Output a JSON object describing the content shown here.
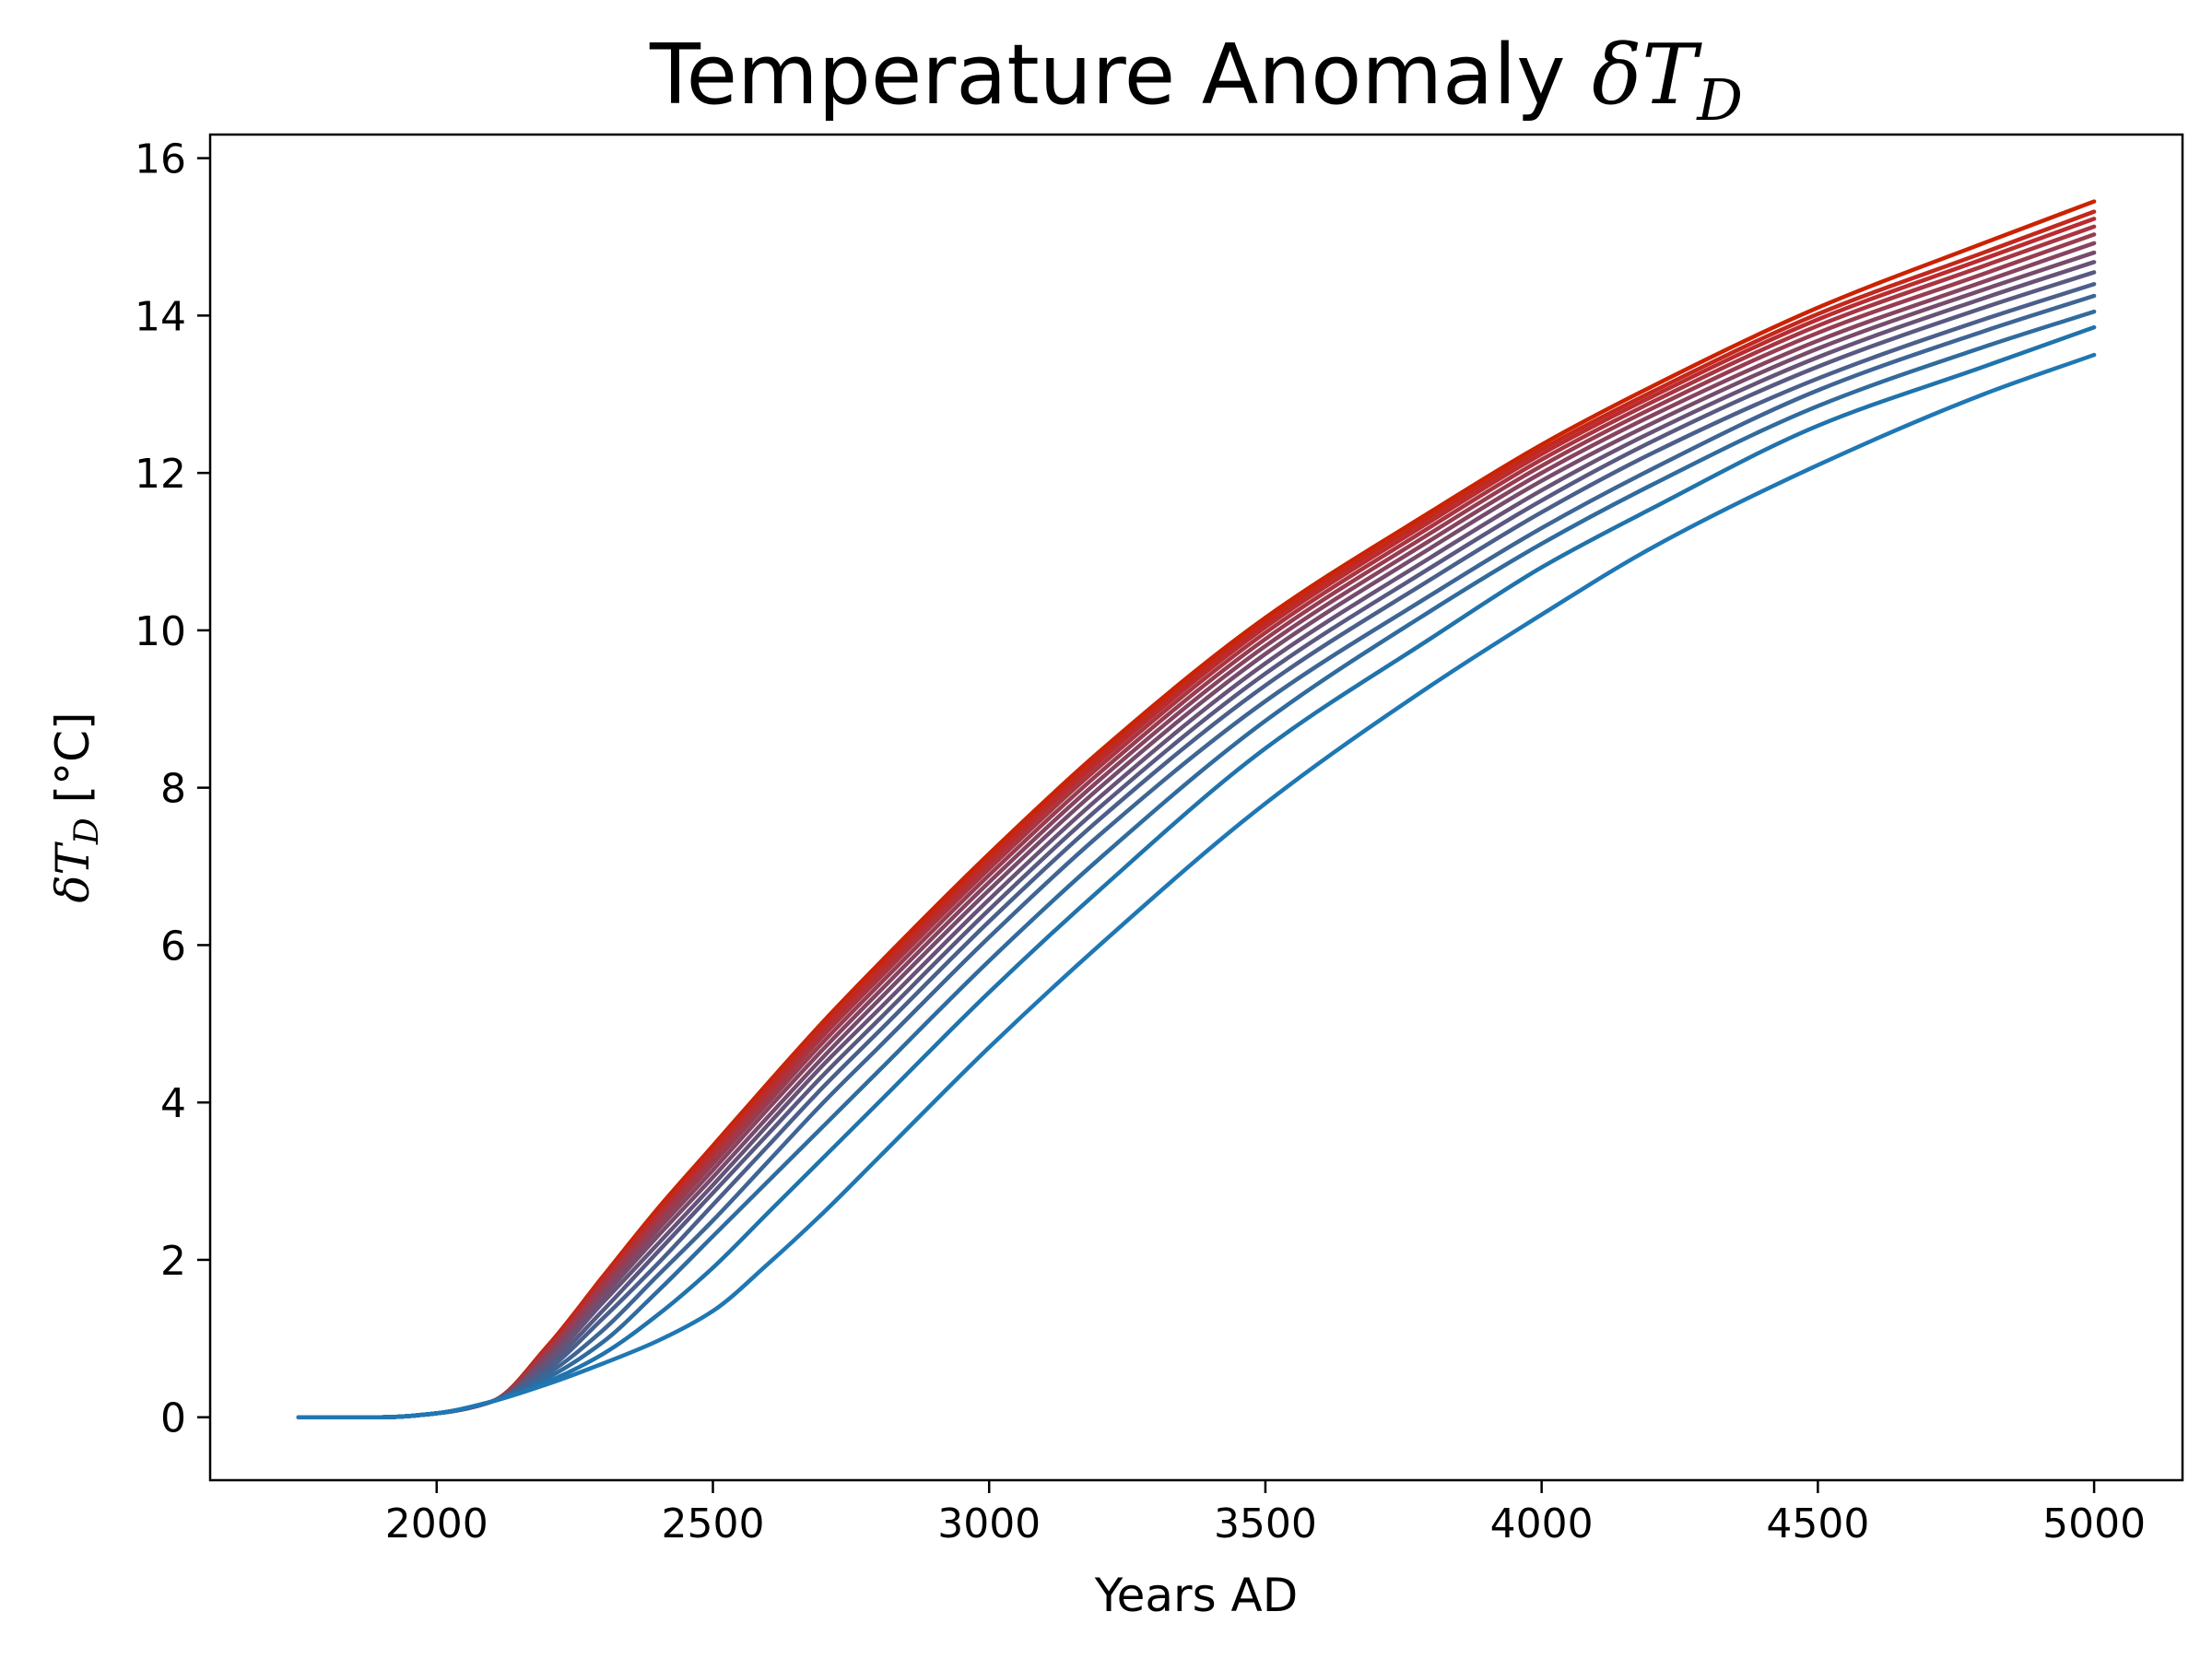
{
  "chart_data": {
    "type": "line",
    "title": {
      "text": "Temperature Anomaly ",
      "symbol": "δT",
      "subscript": "D"
    },
    "xlabel": "Years AD",
    "ylabel": {
      "symbol": "δT",
      "subscript": "D",
      "unit": " [°C]"
    },
    "xlim": [
      1590,
      5160
    ],
    "ylim": [
      -0.8,
      16.3
    ],
    "xticks": [
      2000,
      2500,
      3000,
      3500,
      4000,
      4500,
      5000
    ],
    "yticks": [
      0,
      2,
      4,
      6,
      8,
      10,
      12,
      14,
      16
    ],
    "grid": false,
    "colors": {
      "start": "#1f77b4",
      "end": "#cc2200"
    },
    "series": [
      {
        "color": "#1f77b4",
        "x": [
          1750,
          1900,
          2000,
          2100,
          2200,
          2300,
          2400,
          2500,
          2600,
          2700,
          2800,
          3000,
          3200,
          3500,
          3800,
          4000,
          4200,
          4500,
          4800,
          5000
        ],
        "y": [
          0,
          0,
          0.05,
          0.2,
          0.42,
          0.68,
          0.97,
          1.35,
          1.95,
          2.6,
          3.3,
          4.7,
          6.0,
          7.8,
          9.3,
          10.2,
          11.05,
          12.1,
          13.0,
          13.5
        ]
      },
      {
        "color": "#2073ab",
        "x": [
          1750,
          1900,
          2000,
          2100,
          2200,
          2300,
          2400,
          2500,
          2600,
          2700,
          2800,
          3000,
          3200,
          3500,
          3800,
          4000,
          4200,
          4500,
          4800,
          5000
        ],
        "y": [
          0,
          0,
          0.05,
          0.2,
          0.45,
          0.8,
          1.3,
          1.9,
          2.6,
          3.3,
          4.0,
          5.4,
          6.7,
          8.5,
          9.9,
          10.8,
          11.55,
          12.6,
          13.35,
          13.85
        ]
      },
      {
        "color": "#306b9e",
        "x": [
          1750,
          1900,
          2000,
          2100,
          2200,
          2300,
          2400,
          2500,
          2600,
          2700,
          2800,
          3000,
          3200,
          3500,
          3800,
          4000,
          4200,
          4500,
          4800,
          5000
        ],
        "y": [
          0,
          0,
          0.05,
          0.2,
          0.5,
          0.95,
          1.6,
          2.3,
          3.0,
          3.7,
          4.4,
          5.8,
          7.1,
          8.85,
          10.25,
          11.1,
          11.85,
          12.85,
          13.6,
          14.05
        ]
      },
      {
        "color": "#3d6595",
        "x": [
          1750,
          1900,
          2000,
          2100,
          2200,
          2300,
          2400,
          2500,
          2600,
          2700,
          2800,
          3000,
          3200,
          3500,
          3800,
          4000,
          4200,
          4500,
          4800,
          5000
        ],
        "y": [
          0,
          0,
          0.05,
          0.2,
          0.55,
          1.1,
          1.8,
          2.5,
          3.25,
          4.0,
          4.7,
          6.1,
          7.4,
          9.1,
          10.45,
          11.3,
          12.05,
          13.05,
          13.8,
          14.25
        ]
      },
      {
        "color": "#4a5f8b",
        "x": [
          1750,
          1900,
          2000,
          2100,
          2200,
          2300,
          2400,
          2500,
          2600,
          2700,
          2800,
          3000,
          3200,
          3500,
          3800,
          4000,
          4200,
          4500,
          4800,
          5000
        ],
        "y": [
          0,
          0,
          0.05,
          0.2,
          0.6,
          1.25,
          1.95,
          2.7,
          3.45,
          4.2,
          4.9,
          6.3,
          7.6,
          9.3,
          10.65,
          11.5,
          12.25,
          13.2,
          13.95,
          14.4
        ]
      },
      {
        "color": "#585982",
        "x": [
          1750,
          1900,
          2000,
          2100,
          2200,
          2300,
          2400,
          2500,
          2600,
          2700,
          2800,
          3000,
          3200,
          3500,
          3800,
          4000,
          4200,
          4500,
          4800,
          5000
        ],
        "y": [
          0,
          0,
          0.05,
          0.2,
          0.65,
          1.35,
          2.1,
          2.85,
          3.6,
          4.35,
          5.05,
          6.45,
          7.75,
          9.45,
          10.8,
          11.65,
          12.4,
          13.35,
          14.1,
          14.55
        ]
      },
      {
        "color": "#675278",
        "x": [
          1750,
          1900,
          2000,
          2100,
          2200,
          2300,
          2400,
          2500,
          2600,
          2700,
          2800,
          3000,
          3200,
          3500,
          3800,
          4000,
          4200,
          4500,
          4800,
          5000
        ],
        "y": [
          0,
          0,
          0.05,
          0.2,
          0.7,
          1.45,
          2.2,
          2.95,
          3.72,
          4.48,
          5.18,
          6.58,
          7.88,
          9.58,
          10.93,
          11.78,
          12.52,
          13.47,
          14.22,
          14.68
        ]
      },
      {
        "color": "#764b6c",
        "x": [
          1750,
          1900,
          2000,
          2100,
          2200,
          2300,
          2400,
          2500,
          2600,
          2700,
          2800,
          3000,
          3200,
          3500,
          3800,
          4000,
          4200,
          4500,
          4800,
          5000
        ],
        "y": [
          0,
          0,
          0.05,
          0.2,
          0.74,
          1.52,
          2.3,
          3.05,
          3.82,
          4.58,
          5.3,
          6.7,
          8.0,
          9.7,
          11.05,
          11.9,
          12.63,
          13.58,
          14.33,
          14.8
        ]
      },
      {
        "color": "#864460",
        "x": [
          1750,
          1900,
          2000,
          2100,
          2200,
          2300,
          2400,
          2500,
          2600,
          2700,
          2800,
          3000,
          3200,
          3500,
          3800,
          4000,
          4200,
          4500,
          4800,
          5000
        ],
        "y": [
          0,
          0,
          0.05,
          0.2,
          0.78,
          1.58,
          2.38,
          3.14,
          3.92,
          4.68,
          5.4,
          6.8,
          8.1,
          9.8,
          11.15,
          12.0,
          12.73,
          13.68,
          14.43,
          14.92
        ]
      },
      {
        "color": "#973d51",
        "x": [
          1750,
          1900,
          2000,
          2100,
          2200,
          2300,
          2400,
          2500,
          2600,
          2700,
          2800,
          3000,
          3200,
          3500,
          3800,
          4000,
          4200,
          4500,
          4800,
          5000
        ],
        "y": [
          0,
          0,
          0.05,
          0.2,
          0.81,
          1.63,
          2.45,
          3.22,
          4.0,
          4.77,
          5.49,
          6.89,
          8.19,
          9.89,
          11.24,
          12.09,
          12.82,
          13.78,
          14.53,
          15.03
        ]
      },
      {
        "color": "#a83542",
        "x": [
          1750,
          1900,
          2000,
          2100,
          2200,
          2300,
          2400,
          2500,
          2600,
          2700,
          2800,
          3000,
          3200,
          3500,
          3800,
          4000,
          4200,
          4500,
          4800,
          5000
        ],
        "y": [
          0,
          0,
          0.05,
          0.2,
          0.84,
          1.68,
          2.51,
          3.29,
          4.07,
          4.85,
          5.57,
          6.97,
          8.27,
          9.97,
          11.32,
          12.17,
          12.9,
          13.87,
          14.63,
          15.13
        ]
      },
      {
        "color": "#b92c30",
        "x": [
          1750,
          1900,
          2000,
          2100,
          2200,
          2300,
          2400,
          2500,
          2600,
          2700,
          2800,
          3000,
          3200,
          3500,
          3800,
          4000,
          4200,
          4500,
          4800,
          5000
        ],
        "y": [
          0,
          0,
          0.05,
          0.2,
          0.86,
          1.72,
          2.56,
          3.35,
          4.14,
          4.92,
          5.64,
          7.04,
          8.34,
          10.04,
          11.39,
          12.24,
          12.97,
          13.95,
          14.72,
          15.23
        ]
      },
      {
        "color": "#c2281d",
        "x": [
          1750,
          1900,
          2000,
          2100,
          2200,
          2300,
          2400,
          2500,
          2600,
          2700,
          2800,
          3000,
          3200,
          3500,
          3800,
          4000,
          4200,
          4500,
          4800,
          5000
        ],
        "y": [
          0,
          0,
          0.05,
          0.2,
          0.88,
          1.75,
          2.6,
          3.4,
          4.2,
          4.98,
          5.7,
          7.1,
          8.4,
          10.1,
          11.45,
          12.3,
          13.03,
          14.02,
          14.8,
          15.32
        ]
      },
      {
        "color": "#cc2200",
        "x": [
          1750,
          1900,
          2000,
          2100,
          2200,
          2300,
          2400,
          2500,
          2600,
          2700,
          2800,
          3000,
          3200,
          3500,
          3800,
          4000,
          4200,
          4500,
          4800,
          5000
        ],
        "y": [
          0,
          0,
          0.05,
          0.2,
          0.9,
          1.78,
          2.65,
          3.45,
          4.25,
          5.03,
          5.76,
          7.16,
          8.46,
          10.16,
          11.51,
          12.36,
          13.1,
          14.1,
          14.92,
          15.45
        ]
      }
    ]
  }
}
